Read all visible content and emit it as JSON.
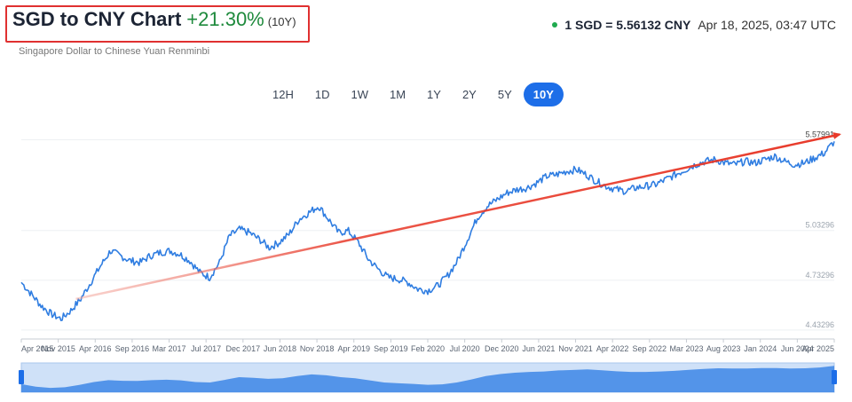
{
  "header": {
    "title": "SGD to CNY Chart",
    "change": "+21.30%",
    "period": "(10Y)",
    "subtitle": "Singapore Dollar to Chinese Yuan Renminbi",
    "rate": "1 SGD = 5.56132 CNY",
    "timestamp": "Apr 18, 2025, 03:47 UTC"
  },
  "tabs": [
    {
      "label": "12H",
      "active": false
    },
    {
      "label": "1D",
      "active": false
    },
    {
      "label": "1W",
      "active": false
    },
    {
      "label": "1M",
      "active": false
    },
    {
      "label": "1Y",
      "active": false
    },
    {
      "label": "2Y",
      "active": false
    },
    {
      "label": "5Y",
      "active": false
    },
    {
      "label": "10Y",
      "active": true
    }
  ],
  "colors": {
    "accent": "#1d6ee8",
    "line": "#2f7de1",
    "positive": "#1e8a3c",
    "annotation": "#e83a2a"
  },
  "chart_data": {
    "type": "line",
    "ylabels": [
      "5.57991",
      "5.03296",
      "4.73296",
      "4.43296"
    ],
    "y_ticks": [
      5.57991,
      5.03296,
      4.73296,
      4.43296
    ],
    "ylim": [
      4.4,
      5.62
    ],
    "xlabels": [
      "Apr 2015",
      "Nov 2015",
      "Apr 2016",
      "Sep 2016",
      "Mar 2017",
      "Jul 2017",
      "Dec 2017",
      "Jun 2018",
      "Nov 2018",
      "Apr 2019",
      "Sep 2019",
      "Feb 2020",
      "Jul 2020",
      "Dec 2020",
      "Jun 2021",
      "Nov 2021",
      "Apr 2022",
      "Sep 2022",
      "Mar 2023",
      "Aug 2023",
      "Jan 2024",
      "Jun 2024",
      "Apr 2025"
    ],
    "series": [
      {
        "values": [
          4.72,
          4.65,
          4.58,
          4.53,
          4.5,
          4.55,
          4.62,
          4.72,
          4.82,
          4.91,
          4.88,
          4.85,
          4.84,
          4.88,
          4.9,
          4.91,
          4.89,
          4.85,
          4.78,
          4.75,
          4.84,
          5.0,
          5.04,
          5.02,
          4.98,
          4.93,
          4.96,
          5.01,
          5.1,
          5.14,
          5.18,
          5.1,
          5.02,
          5.03,
          4.96,
          4.86,
          4.8,
          4.75,
          4.74,
          4.72,
          4.68,
          4.67,
          4.7,
          4.76,
          4.85,
          4.98,
          5.11,
          5.18,
          5.22,
          5.26,
          5.28,
          5.29,
          5.32,
          5.36,
          5.37,
          5.39,
          5.4,
          5.37,
          5.33,
          5.3,
          5.28,
          5.27,
          5.29,
          5.3,
          5.31,
          5.34,
          5.37,
          5.4,
          5.43,
          5.45,
          5.46,
          5.44,
          5.43,
          5.45,
          5.44,
          5.46,
          5.48,
          5.45,
          5.43,
          5.44,
          5.47,
          5.5,
          5.57
        ]
      }
    ],
    "trendline": {
      "from": 4.62,
      "to": 5.58
    }
  },
  "navigator": {
    "values": [
      4.7,
      4.58,
      4.52,
      4.55,
      4.66,
      4.8,
      4.89,
      4.86,
      4.85,
      4.89,
      4.91,
      4.88,
      4.8,
      4.78,
      4.9,
      5.03,
      5.0,
      4.95,
      4.98,
      5.08,
      5.16,
      5.12,
      5.03,
      4.98,
      4.88,
      4.78,
      4.74,
      4.71,
      4.67,
      4.69,
      4.78,
      4.92,
      5.08,
      5.18,
      5.24,
      5.28,
      5.3,
      5.35,
      5.37,
      5.4,
      5.36,
      5.31,
      5.28,
      5.28,
      5.3,
      5.33,
      5.38,
      5.42,
      5.45,
      5.44,
      5.44,
      5.46,
      5.46,
      5.44,
      5.45,
      5.49,
      5.57
    ]
  }
}
